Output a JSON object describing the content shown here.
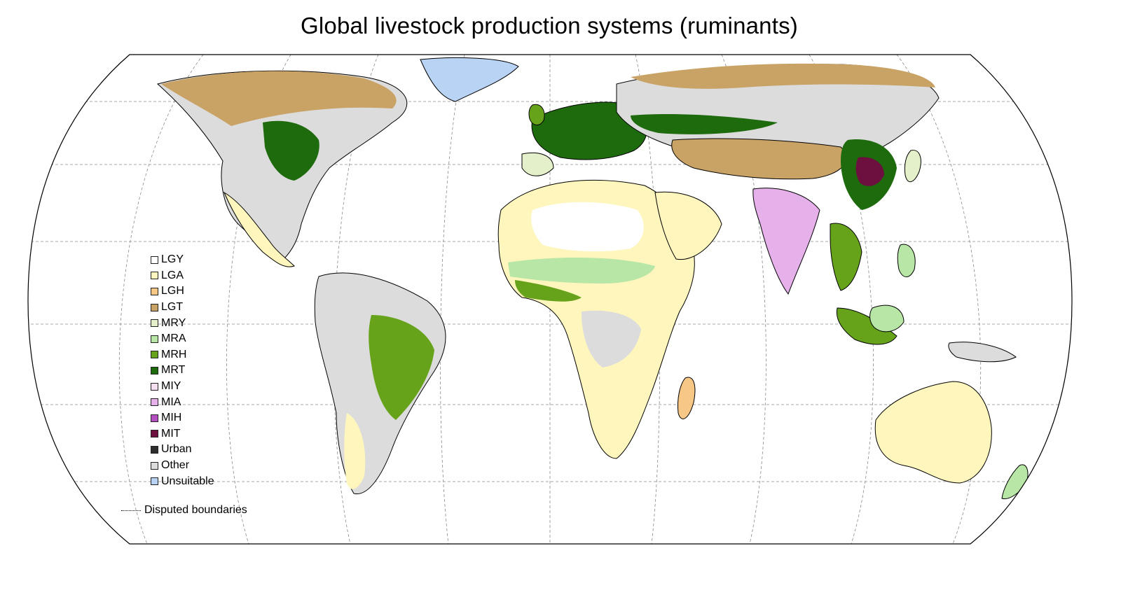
{
  "title": "Global livestock production systems (ruminants)",
  "legend": [
    {
      "code": "LGY",
      "color": "#ffffff"
    },
    {
      "code": "LGA",
      "color": "#fff6bd"
    },
    {
      "code": "LGH",
      "color": "#f6c785"
    },
    {
      "code": "LGT",
      "color": "#c9a266"
    },
    {
      "code": "MRY",
      "color": "#e4f0c9"
    },
    {
      "code": "MRA",
      "color": "#b7e6a6"
    },
    {
      "code": "MRH",
      "color": "#67a31a"
    },
    {
      "code": "MRT",
      "color": "#1e6b0e"
    },
    {
      "code": "MIY",
      "color": "#f4dff0"
    },
    {
      "code": "MIA",
      "color": "#e6b0ea"
    },
    {
      "code": "MIH",
      "color": "#b34fc0"
    },
    {
      "code": "MIT",
      "color": "#6d0f3f"
    },
    {
      "code": "Urban",
      "color": "#2e2e2e"
    },
    {
      "code": "Other",
      "color": "#dcdcdc"
    },
    {
      "code": "Unsuitable",
      "color": "#b9d3f5"
    }
  ],
  "disputed_label": "Disputed boundaries"
}
